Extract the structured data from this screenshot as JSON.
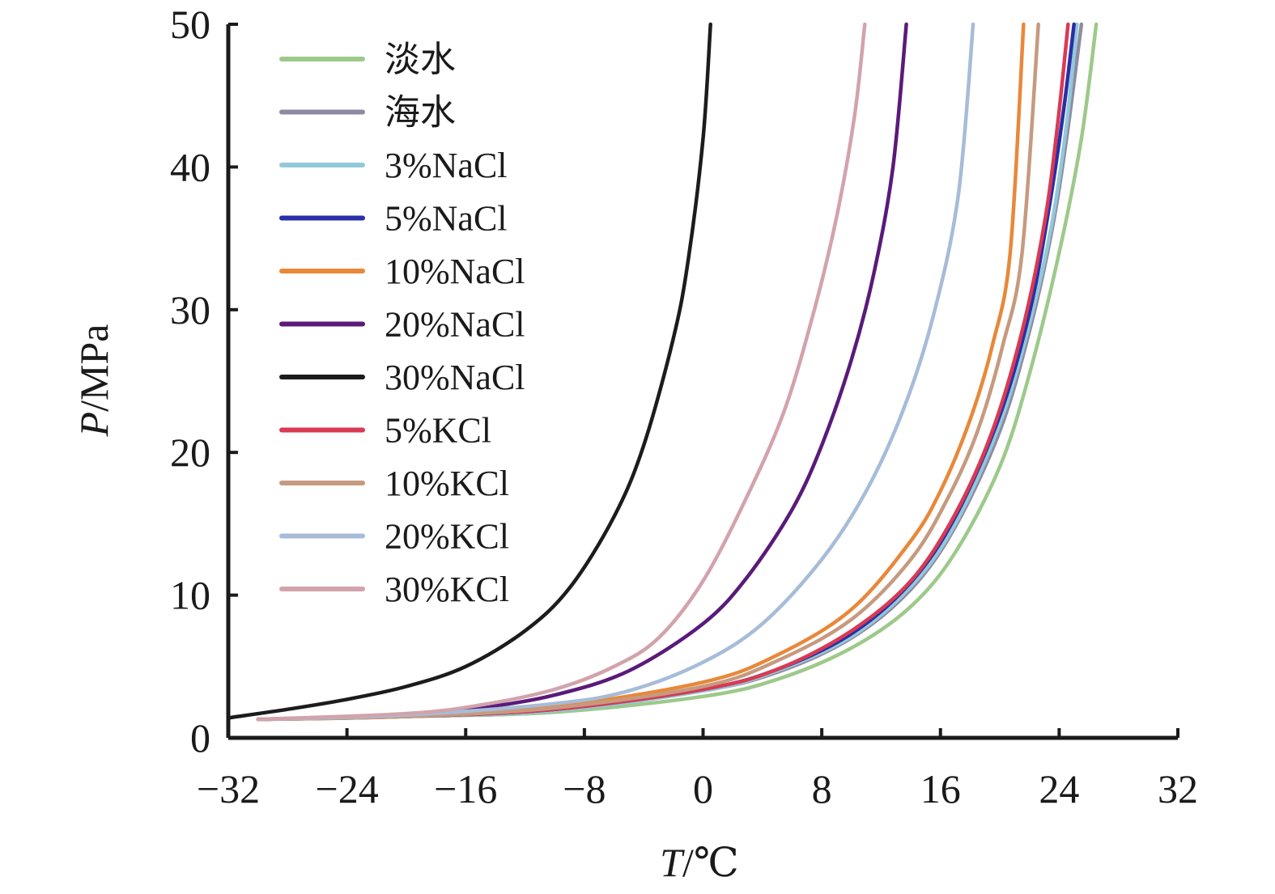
{
  "chart_data": {
    "type": "line",
    "xlabel_var": "T",
    "xlabel_unit": "/℃",
    "ylabel_var": "P",
    "ylabel_unit": "/MPa",
    "xlim": [
      -32,
      32
    ],
    "ylim": [
      0,
      50
    ],
    "xticks": [
      -32,
      -24,
      -16,
      -8,
      0,
      8,
      16,
      24,
      32
    ],
    "xtick_labels": [
      "−32",
      "−24",
      "−16",
      "−8",
      "0",
      "8",
      "16",
      "24",
      "32"
    ],
    "yticks": [
      0,
      10,
      20,
      30,
      40,
      50
    ],
    "ytick_labels": [
      "0",
      "10",
      "20",
      "30",
      "40",
      "50"
    ],
    "grid": false,
    "legend_position": "top-left",
    "series": [
      {
        "name": "淡水",
        "color": "#9dc98a",
        "x": [
          -30,
          -20,
          -10,
          0,
          5,
          10,
          14,
          17,
          20,
          22,
          24,
          25.5,
          26.5
        ],
        "y": [
          1.3,
          1.5,
          1.8,
          2.9,
          4.1,
          6.3,
          9.2,
          13.0,
          19.0,
          25.5,
          34.0,
          42.0,
          50
        ]
      },
      {
        "name": "海水",
        "color": "#8f8aa3",
        "x": [
          -30,
          -20,
          -10,
          0,
          5,
          10,
          14,
          17,
          20,
          22,
          23.5,
          24.5,
          25.5
        ],
        "y": [
          1.3,
          1.5,
          1.9,
          3.3,
          4.6,
          7.0,
          10.4,
          14.8,
          21.5,
          28.5,
          35.5,
          42.0,
          50
        ]
      },
      {
        "name": "3%NaCl",
        "color": "#92c9d8",
        "x": [
          -30,
          -20,
          -10,
          0,
          5,
          10,
          14,
          17,
          20,
          22,
          23.5,
          24.5,
          25.2
        ],
        "y": [
          1.3,
          1.5,
          1.9,
          3.3,
          4.7,
          7.1,
          10.6,
          15.0,
          22.0,
          29.0,
          36.0,
          43.0,
          50
        ]
      },
      {
        "name": "5%NaCl",
        "color": "#2a2ea8",
        "x": [
          -30,
          -20,
          -10,
          0,
          5,
          10,
          14,
          17,
          20,
          22,
          23.3,
          24.3,
          25.0
        ],
        "y": [
          1.3,
          1.5,
          2.0,
          3.4,
          4.8,
          7.3,
          10.9,
          15.5,
          22.6,
          29.8,
          37.0,
          44.0,
          50
        ]
      },
      {
        "name": "10%NaCl",
        "color": "#e8883a",
        "x": [
          -30,
          -20,
          -10,
          0,
          5,
          10,
          14,
          16,
          18,
          19.5,
          20.7,
          21.6
        ],
        "y": [
          1.3,
          1.5,
          2.2,
          3.9,
          5.8,
          9.0,
          13.8,
          17.3,
          22.3,
          27.5,
          34.0,
          50
        ]
      },
      {
        "name": "20%NaCl",
        "color": "#5a1a7a",
        "x": [
          -30,
          -20,
          -15,
          -10,
          -5,
          0,
          3,
          6,
          8,
          10,
          11.5,
          12.8,
          13.7
        ],
        "y": [
          1.3,
          1.6,
          2.1,
          3.0,
          4.7,
          8.0,
          11.3,
          16.0,
          20.5,
          26.5,
          32.5,
          40.0,
          50
        ]
      },
      {
        "name": "30%NaCl",
        "color": "#1c1c1c",
        "x": [
          -32,
          -28,
          -24,
          -20,
          -16,
          -12,
          -9,
          -6,
          -4,
          -2,
          -1,
          0,
          0.5
        ],
        "y": [
          1.4,
          2.0,
          2.7,
          3.6,
          5.0,
          7.5,
          10.5,
          15.5,
          20.5,
          28.0,
          33.5,
          42.0,
          50
        ]
      },
      {
        "name": "5%KCl",
        "color": "#d93a52",
        "x": [
          -30,
          -20,
          -10,
          0,
          5,
          10,
          14,
          17,
          19.5,
          21.5,
          23.0,
          23.9,
          24.6
        ],
        "y": [
          1.3,
          1.5,
          2.0,
          3.4,
          4.8,
          7.5,
          11.0,
          15.7,
          21.5,
          28.5,
          36.0,
          43.0,
          50
        ]
      },
      {
        "name": "10%KCl",
        "color": "#c69a7f",
        "x": [
          -30,
          -20,
          -10,
          0,
          5,
          10,
          14,
          16.5,
          18.5,
          20.2,
          21.5,
          22.6
        ],
        "y": [
          1.3,
          1.5,
          2.1,
          3.6,
          5.4,
          8.3,
          12.5,
          16.8,
          21.5,
          27.5,
          34.0,
          50
        ]
      },
      {
        "name": "20%KCl",
        "color": "#a6bcd8",
        "x": [
          -30,
          -20,
          -10,
          -5,
          0,
          4,
          8,
          11,
          13.5,
          15.5,
          17.2,
          18.2
        ],
        "y": [
          1.3,
          1.6,
          2.4,
          3.3,
          5.3,
          8.0,
          12.5,
          17.3,
          23.0,
          29.5,
          38.0,
          50
        ]
      },
      {
        "name": "30%KCl",
        "color": "#d2a3ac",
        "x": [
          -30,
          -20,
          -15,
          -10,
          -6,
          -3,
          0,
          3,
          5.5,
          7.5,
          9.0,
          10.2,
          10.9
        ],
        "y": [
          1.3,
          1.7,
          2.3,
          3.4,
          5.0,
          7.0,
          11.0,
          17.0,
          23.0,
          30.0,
          36.5,
          43.5,
          50
        ]
      }
    ]
  }
}
